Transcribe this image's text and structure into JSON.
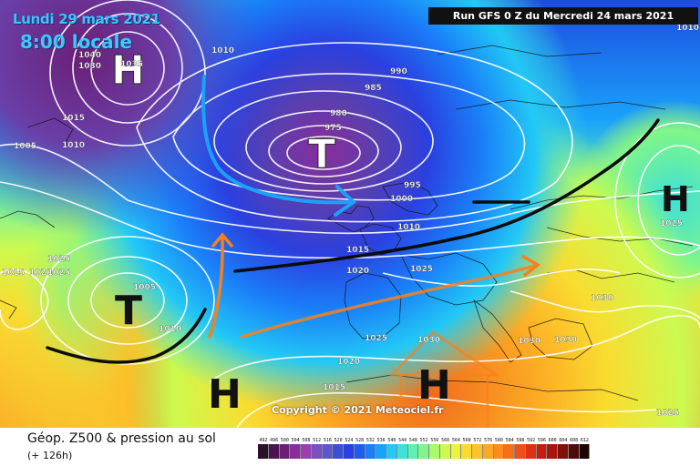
{
  "header": {
    "date": "Lundi 29 mars 2021",
    "time": "8:00 locale",
    "run": "Run GFS 0 Z du Mercredi 24 mars 2021"
  },
  "copyright": "Copyright © 2021 Meteociel.fr",
  "footer": {
    "title": "Géop. Z500 & pression au sol",
    "lead": "(+ 126h)"
  },
  "pressure_centers": [
    {
      "id": "h-nw",
      "letter": "H",
      "kind": "high"
    },
    {
      "id": "t-north",
      "letter": "T",
      "kind": "low"
    },
    {
      "id": "h-east",
      "letter": "H",
      "kind": "high"
    },
    {
      "id": "t-atlantic",
      "letter": "T",
      "kind": "low"
    },
    {
      "id": "h-azores",
      "letter": "H",
      "kind": "high"
    },
    {
      "id": "h-med",
      "letter": "H",
      "kind": "high"
    }
  ],
  "isobar_labels": [
    "1010",
    "1040",
    "1030",
    "1035",
    "1010",
    "1015",
    "1005",
    "1010",
    "990",
    "985",
    "980",
    "975",
    "995",
    "1000",
    "1010",
    "1015",
    "1020",
    "1025",
    "1025",
    "1015",
    "1020",
    "1025",
    "1005",
    "1010",
    "1025",
    "1030",
    "1025",
    "1030",
    "1030",
    "1020",
    "1015",
    "1025",
    "1030"
  ],
  "scale": {
    "labels": [
      "492",
      "496",
      "500",
      "504",
      "508",
      "512",
      "516",
      "520",
      "524",
      "528",
      "532",
      "536",
      "540",
      "544",
      "548",
      "552",
      "556",
      "560",
      "564",
      "568",
      "572",
      "576",
      "580",
      "584",
      "588",
      "592",
      "596",
      "600",
      "604",
      "608",
      "612"
    ],
    "colors": [
      "#2b0f2b",
      "#4a1450",
      "#6a1f76",
      "#8a2c9a",
      "#9b3fb0",
      "#7a50c0",
      "#5a58d0",
      "#3e4fd6",
      "#2a40e0",
      "#1e5cf0",
      "#1a7ef8",
      "#1aa2fa",
      "#22c8f6",
      "#3ee0d8",
      "#5ef0b0",
      "#80f688",
      "#a8fa6a",
      "#ccfa50",
      "#eef23c",
      "#fadc30",
      "#fcc428",
      "#fca824",
      "#fa8c20",
      "#f6701c",
      "#f05018",
      "#e03014",
      "#c81a10",
      "#a8140e",
      "#80100c",
      "#500a08",
      "#1a0404"
    ]
  }
}
